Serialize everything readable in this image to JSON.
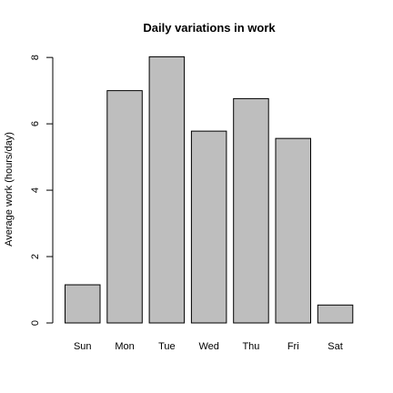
{
  "chart_data": {
    "type": "bar",
    "title": "Daily variations in work",
    "xlabel": "",
    "ylabel": "Average work (hours/day)",
    "categories": [
      "Sun",
      "Mon",
      "Tue",
      "Wed",
      "Thu",
      "Fri",
      "Sat"
    ],
    "values": [
      1.15,
      7.0,
      8.02,
      5.78,
      6.76,
      5.56,
      0.54
    ],
    "ylim": [
      0,
      8.1
    ],
    "yticks": [
      0,
      2,
      4,
      6,
      8
    ],
    "bar_color": "#bebebe",
    "grid": false,
    "legend": "none"
  }
}
